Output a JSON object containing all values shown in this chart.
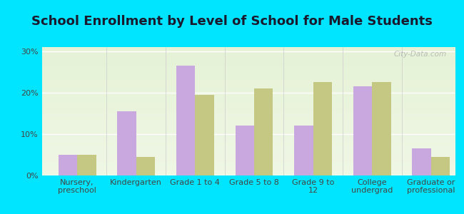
{
  "title": "School Enrollment by Level of School for Male Students",
  "categories": [
    "Nursery,\npreschool",
    "Kindergarten",
    "Grade 1 to 4",
    "Grade 5 to 8",
    "Grade 9 to\n12",
    "College\nundergrad",
    "Graduate or\nprofessional"
  ],
  "del_aire": [
    5.0,
    15.5,
    26.5,
    12.0,
    12.0,
    21.5,
    6.5
  ],
  "california": [
    5.0,
    4.5,
    19.5,
    21.0,
    22.5,
    22.5,
    4.5
  ],
  "del_aire_color": "#c9a8df",
  "california_color": "#c5c882",
  "background_outer": "#00e5ff",
  "background_inner_top": "#e8f0d8",
  "background_inner_bottom": "#f5faf0",
  "yticks": [
    0,
    10,
    20,
    30
  ],
  "ylim": [
    0,
    31
  ],
  "bar_width": 0.32,
  "title_fontsize": 13,
  "tick_fontsize": 8,
  "legend_fontsize": 9.5,
  "watermark": "City-Data.com"
}
